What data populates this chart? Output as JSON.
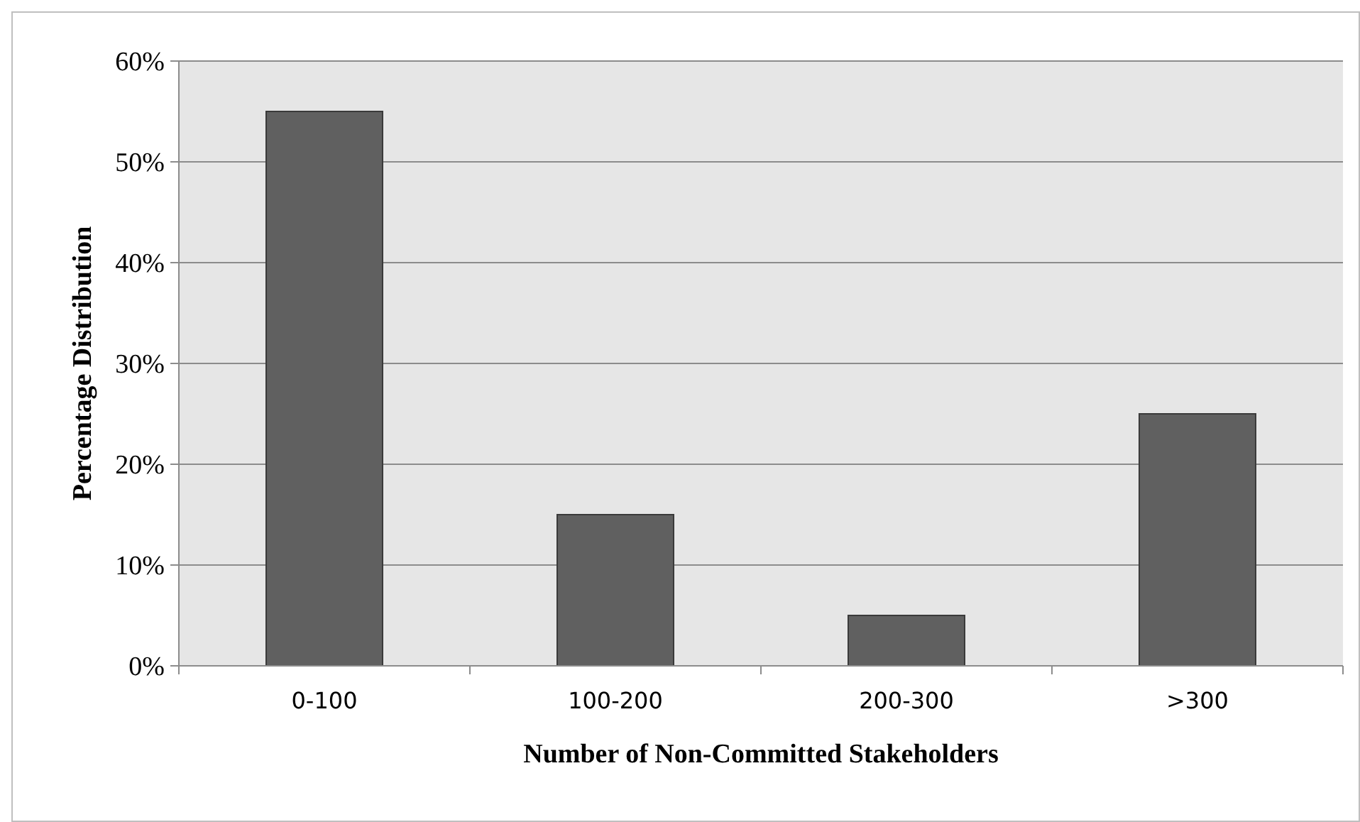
{
  "chart_data": {
    "type": "bar",
    "xlabel": "Number of Non-Committed Stakeholders",
    "ylabel": "Percentage Distribution",
    "categories": [
      "0-100",
      "100-200",
      "200-300",
      ">300"
    ],
    "values": [
      55,
      15,
      5,
      25
    ],
    "color": "#606060",
    "ylim": [
      0,
      60
    ],
    "yticks": [
      {
        "value": 0,
        "label": "0%"
      },
      {
        "value": 10,
        "label": "10%"
      },
      {
        "value": 20,
        "label": "20%"
      },
      {
        "value": 30,
        "label": "30%"
      },
      {
        "value": 40,
        "label": "40%"
      },
      {
        "value": 50,
        "label": "50%"
      },
      {
        "value": 60,
        "label": "60%"
      }
    ],
    "grid": "y"
  }
}
